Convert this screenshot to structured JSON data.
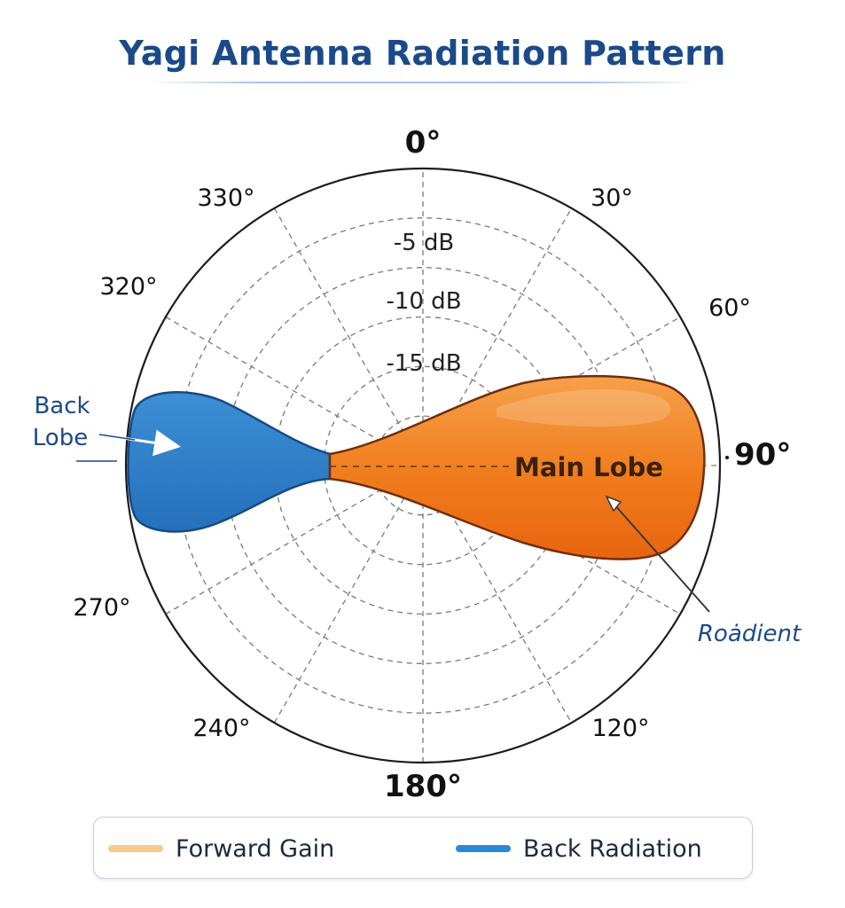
{
  "title": "Yagi Antenna Radiation Pattern",
  "polar": {
    "angle_labels": {
      "a0": "0°",
      "a30": "30°",
      "a60": "60°",
      "a90": "90°",
      "a120": "120°",
      "a180": "180°",
      "a240": "240°",
      "a270": "270°",
      "a320": "320°",
      "a330": "330°"
    },
    "db_labels": [
      "-5 dB",
      "-10 dB",
      "-15 dB"
    ],
    "rings": 5
  },
  "annotations": {
    "back_lobe_line1": "Back",
    "back_lobe_line2": "Lobe",
    "main_lobe": "Main Lobe",
    "gradient_note": "Roȧdient"
  },
  "colors": {
    "forward": "#f07c1c",
    "forward_edge": "#7a3510",
    "back": "#2f7fc8",
    "back_edge": "#164a85",
    "title": "#1b4a8a"
  },
  "legend": [
    {
      "label": "Forward Gain",
      "color": "#f7c98a"
    },
    {
      "label": "Back Radiation",
      "color": "#2b88d8"
    }
  ]
}
